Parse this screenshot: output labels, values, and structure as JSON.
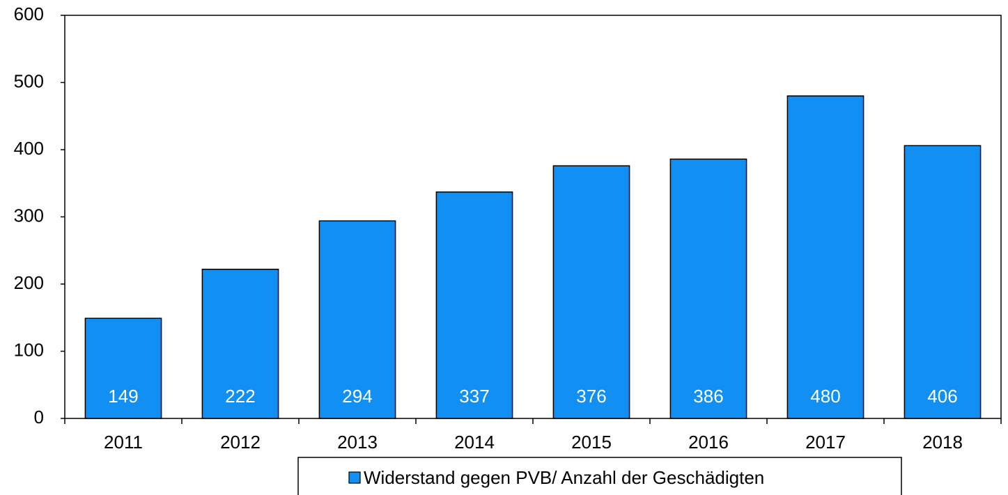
{
  "chart_data": {
    "type": "bar",
    "categories": [
      "2011",
      "2012",
      "2013",
      "2014",
      "2015",
      "2016",
      "2017",
      "2018"
    ],
    "series": [
      {
        "name": "Widerstand gegen PVB/ Anzahl der Geschädigten",
        "color": "#118ff2",
        "values": [
          149,
          222,
          294,
          337,
          376,
          386,
          480,
          406
        ]
      }
    ],
    "ylim": [
      0,
      600
    ],
    "yticks": [
      0,
      100,
      200,
      300,
      400,
      500,
      600
    ],
    "data_labels": true,
    "legend": "bottom",
    "grid": false
  }
}
